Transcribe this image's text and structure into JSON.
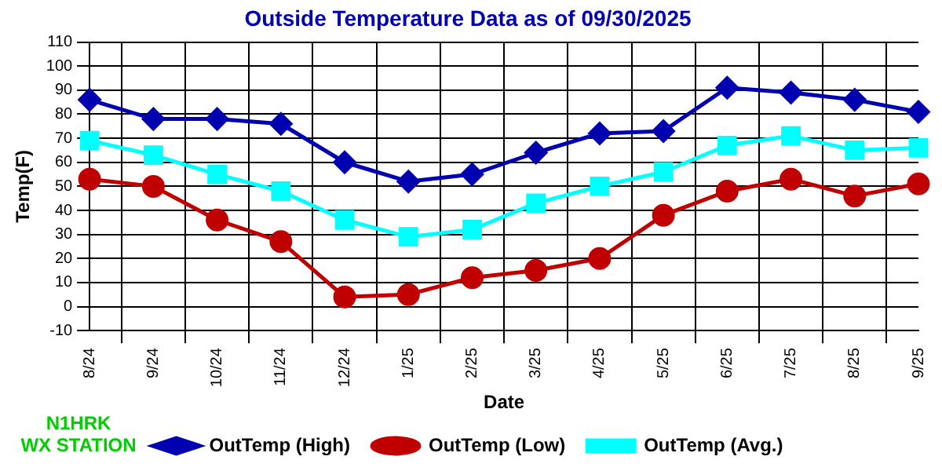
{
  "chart_data": {
    "type": "line",
    "title": "Outside Temperature Data as of 09/30/2025",
    "xlabel": "Date",
    "ylabel": "Temp(F)",
    "categories": [
      "8/24",
      "9/24",
      "10/24",
      "11/24",
      "12/24",
      "1/25",
      "2/25",
      "3/25",
      "4/25",
      "5/25",
      "6/25",
      "7/25",
      "8/25",
      "9/25"
    ],
    "series": [
      {
        "name": "OutTemp (High)",
        "color": "#0000b0",
        "marker": "diamond",
        "values": [
          86,
          78,
          78,
          76,
          60,
          52,
          55,
          64,
          72,
          73,
          91,
          89,
          86,
          81
        ]
      },
      {
        "name": "OutTemp (Low)",
        "color": "#c00000",
        "marker": "circle",
        "values": [
          53,
          50,
          36,
          27,
          4,
          5,
          12,
          15,
          20,
          38,
          48,
          53,
          46,
          51
        ]
      },
      {
        "name": "OutTemp (Avg.)",
        "color": "#00ffff",
        "marker": "square",
        "values": [
          69,
          63,
          55,
          48,
          36,
          29,
          32,
          43,
          50,
          56,
          67,
          71,
          65,
          66
        ]
      }
    ],
    "ylim": [
      -10,
      110
    ],
    "yticks": [
      -10,
      0,
      10,
      20,
      30,
      40,
      50,
      60,
      70,
      80,
      90,
      100,
      110
    ],
    "grid": true,
    "legend": "bottom",
    "line_style": "solid",
    "annotations": [
      "N1HRK",
      "WX STATION"
    ]
  }
}
